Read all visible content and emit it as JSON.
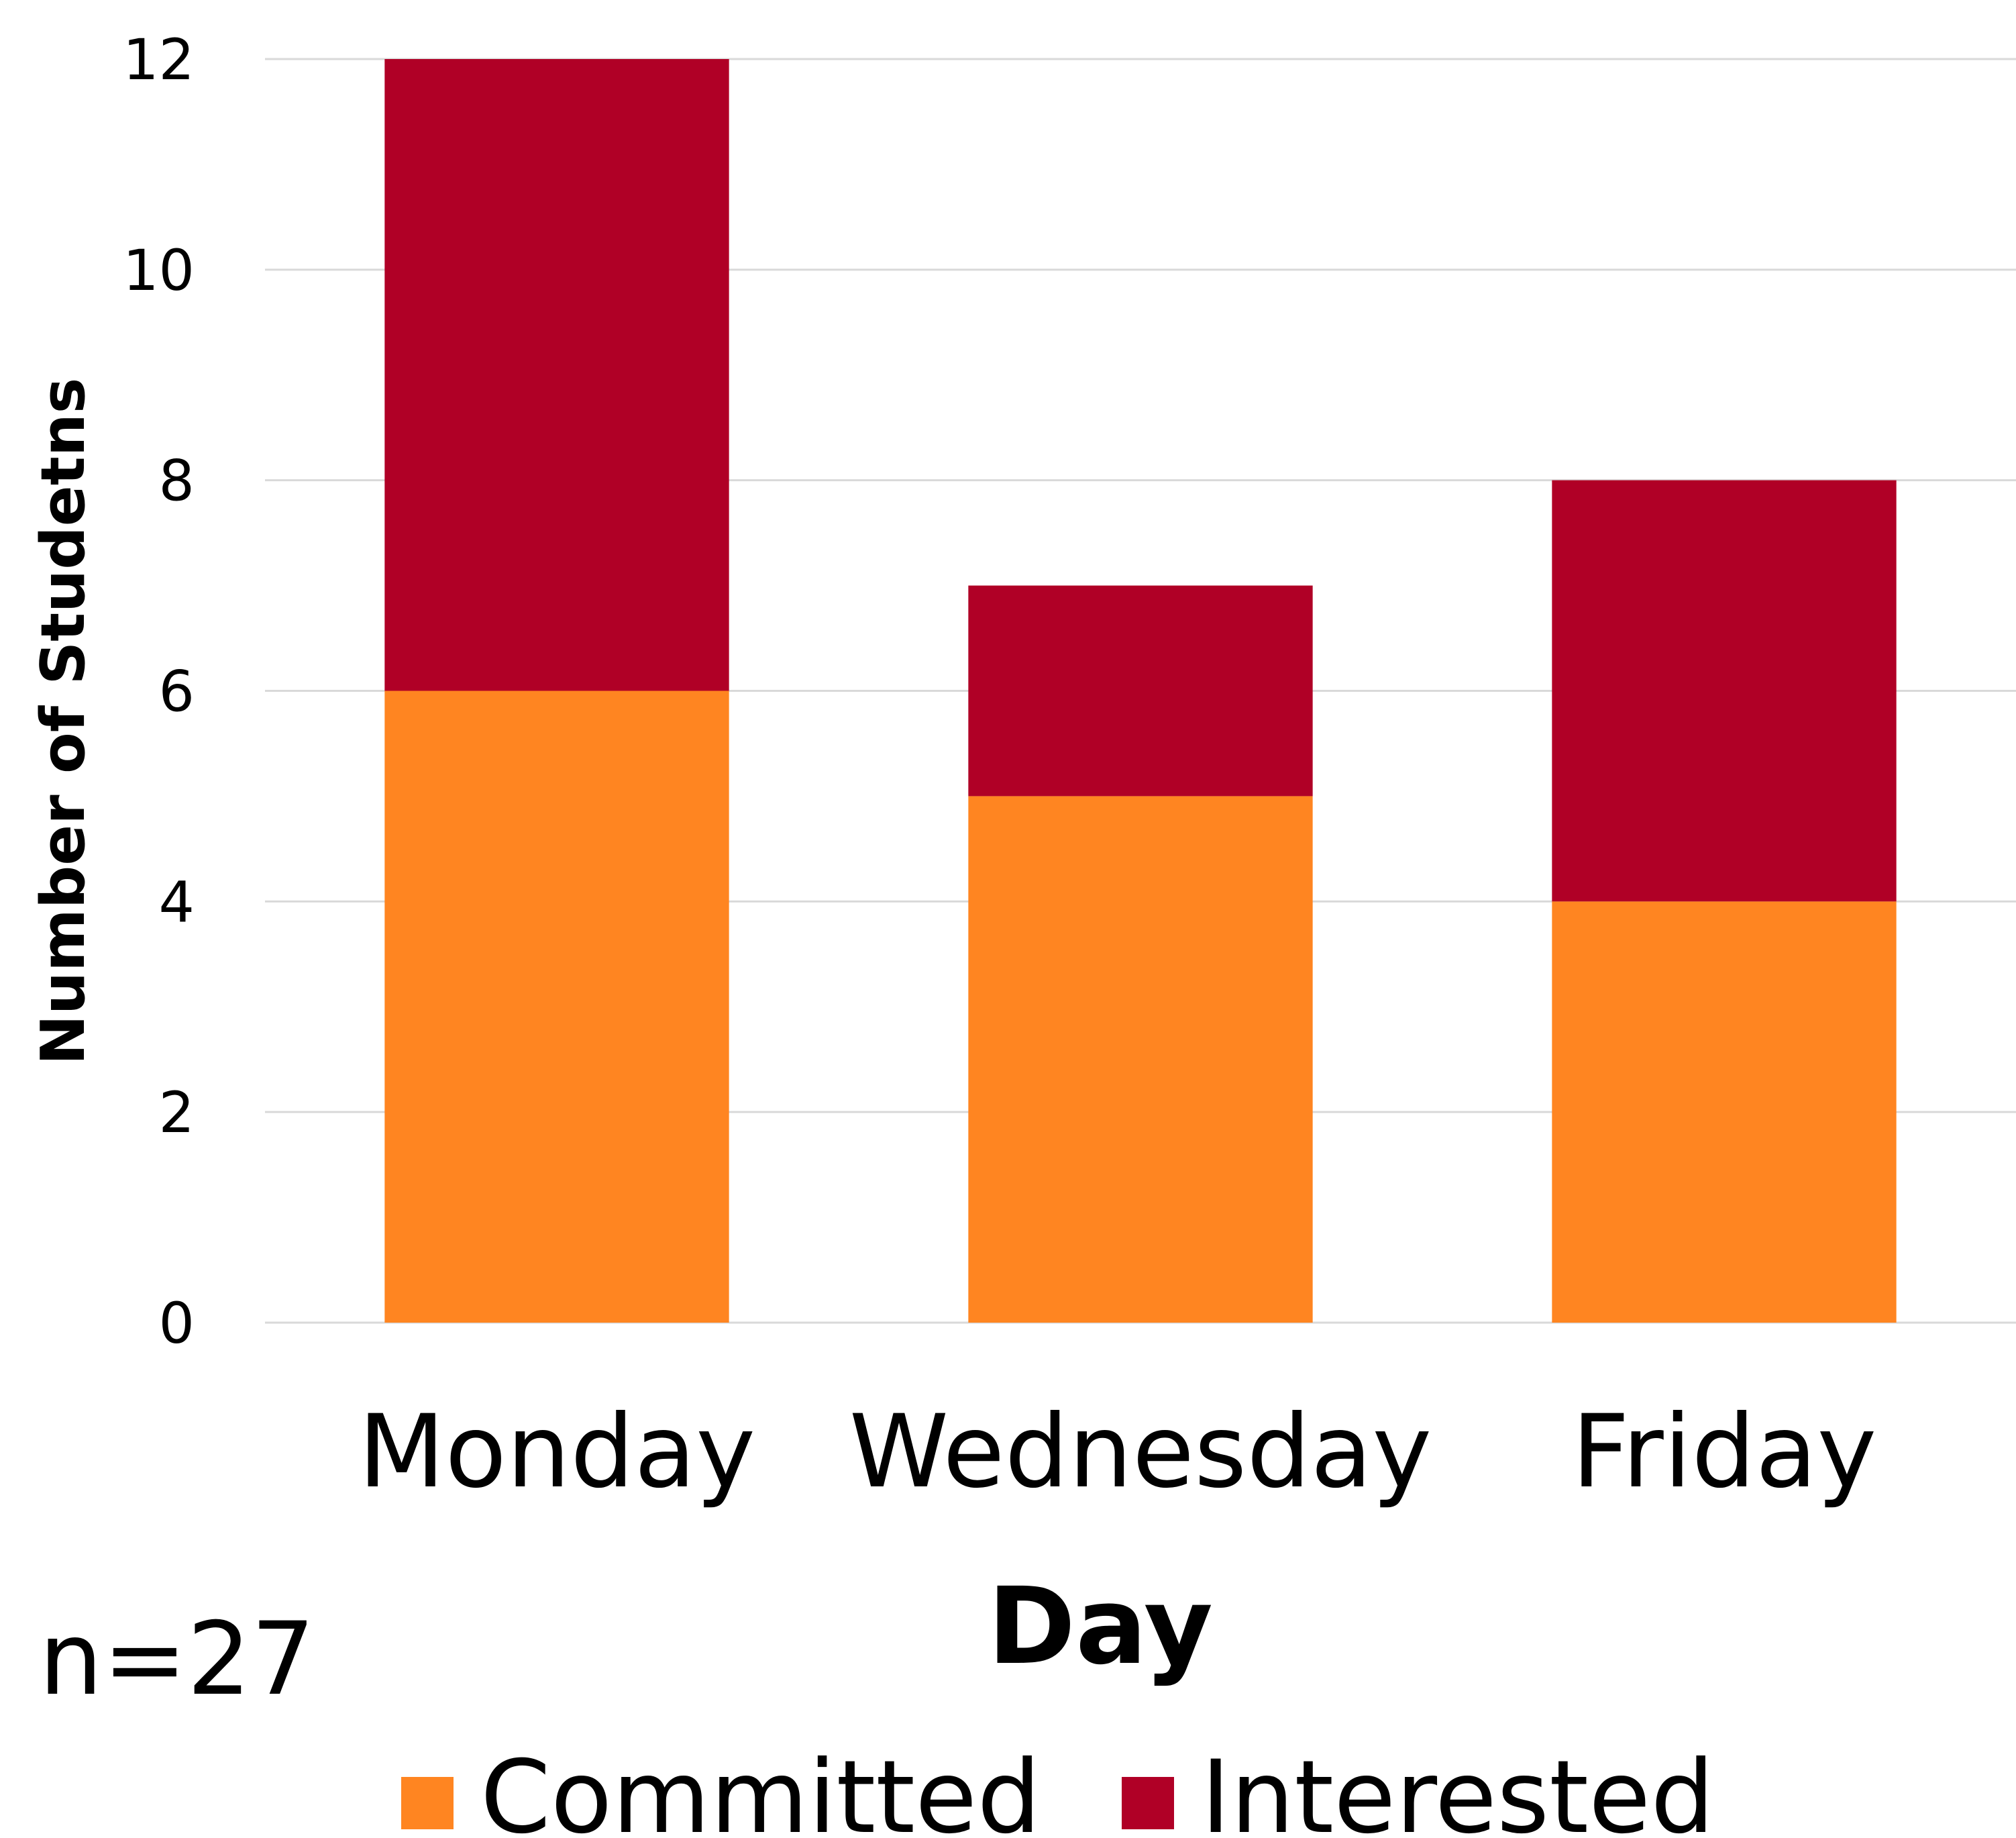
{
  "chart_data": {
    "type": "bar",
    "stacked": true,
    "categories": [
      "Monday",
      "Wednesday",
      "Friday"
    ],
    "series": [
      {
        "name": "Committed",
        "values": [
          6,
          5,
          4
        ],
        "color": "#FF8521"
      },
      {
        "name": "Interested",
        "values": [
          6,
          2,
          4
        ],
        "color": "#B00026"
      }
    ],
    "xlabel": "Day",
    "ylabel": "Number of Studetns",
    "ylim": [
      0,
      12
    ],
    "yticks": [
      0,
      2,
      4,
      6,
      8,
      10,
      12
    ],
    "grid": true,
    "legend": "bottom",
    "annotation": "n=27"
  }
}
